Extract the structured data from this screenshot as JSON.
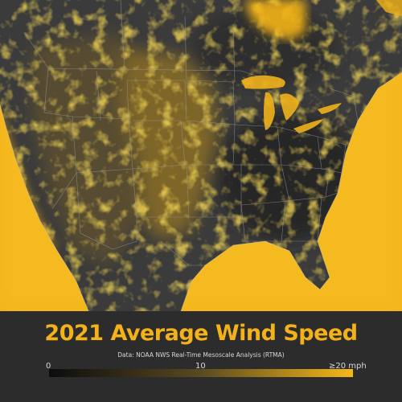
{
  "title": "2021 Average Wind Speed",
  "source": "Data: NOAA NWS Real-Time Mesoscale Analysis (RTMA)",
  "legend": {
    "ticks": [
      "0",
      "10",
      "≥20 mph"
    ],
    "colors": [
      "#0c0c0c",
      "#5a4a20",
      "#f5b817"
    ]
  },
  "colors": {
    "land_calm": "#3a3a3a",
    "wind_high": "#f5b817",
    "background": "#2c2c2c"
  }
}
